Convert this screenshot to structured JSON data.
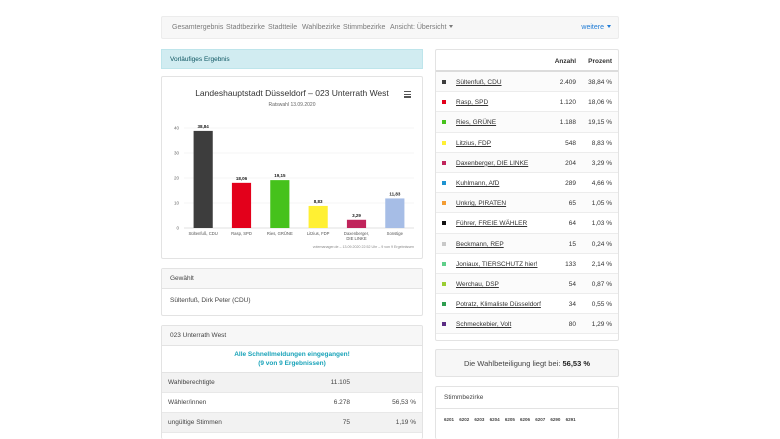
{
  "nav": {
    "items": [
      "Gesamtergebnis",
      "Stadtbezirke",
      "Stadtteile",
      "Wahlbezirke",
      "Stimmbezirke",
      "Ansicht: Übersicht"
    ],
    "more": "weitere"
  },
  "banner": "Vorläufiges Ergebnis",
  "chart_data": {
    "type": "bar",
    "title": "Landeshauptstadt Düsseldorf – 023 Unterrath West",
    "subtitle": "Ratswahl 13.09.2020",
    "categories": [
      "Sültenfuß, CDU",
      "Rasp, SPD",
      "Ries, GRÜNE",
      "Litzius, FDP",
      "Daxenberger, DIE LINKE",
      "Sonstige"
    ],
    "values": [
      38.84,
      18.06,
      19.15,
      8.83,
      3.29,
      11.83
    ],
    "value_labels": [
      "38,84",
      "18,06",
      "19,15",
      "8,83",
      "3,29",
      "11,83"
    ],
    "colors": [
      "#3d3d3d",
      "#e3001b",
      "#46c21c",
      "#fff033",
      "#c0245b",
      "#a6bde6"
    ],
    "ylim": [
      0,
      40
    ],
    "yticks": [
      "0",
      "10",
      "20",
      "30",
      "40"
    ],
    "footnote": "votemanager.de – 13.09.2020 22:52 Uhr – 9 von 9 Ergebnissen",
    "xlabel": "",
    "ylabel": ""
  },
  "gewaehlt": {
    "header": "Gewählt",
    "name": "Sültenfuß, Dirk Peter (CDU)"
  },
  "wahlbezirk": {
    "header": "023 Unterrath West",
    "notice_line1": "Alle Schnellmeldungen eingegangen!",
    "notice_line2": "(9 von 9 Ergebnissen)",
    "rows": [
      {
        "label": "Wahlberechtigte",
        "value": "11.105",
        "pct": ""
      },
      {
        "label": "Wähler/innen",
        "value": "6.278",
        "pct": "56,53 %"
      },
      {
        "label": "ungültige Stimmen",
        "value": "75",
        "pct": "1,19 %"
      }
    ]
  },
  "results": {
    "col_anzahl": "Anzahl",
    "col_prozent": "Prozent",
    "rows": [
      {
        "party": "Sültenfuß, CDU",
        "votes": "2.409",
        "pct": "38,84 %",
        "color": "#3d3d3d"
      },
      {
        "party": "Rasp, SPD",
        "votes": "1.120",
        "pct": "18,06 %",
        "color": "#e3001b"
      },
      {
        "party": "Ries, GRÜNE",
        "votes": "1.188",
        "pct": "19,15 %",
        "color": "#46c21c"
      },
      {
        "party": "Litzius, FDP",
        "votes": "548",
        "pct": "8,83 %",
        "color": "#fff033"
      },
      {
        "party": "Daxenberger, DIE LINKE",
        "votes": "204",
        "pct": "3,29 %",
        "color": "#c0245b"
      },
      {
        "party": "Kuhlmann, AfD",
        "votes": "289",
        "pct": "4,66 %",
        "color": "#1d93d1"
      },
      {
        "party": "Unkrig, PIRATEN",
        "votes": "65",
        "pct": "1,05 %",
        "color": "#f39c33"
      },
      {
        "party": "Führer, FREIE WÄHLER",
        "votes": "64",
        "pct": "1,03 %",
        "color": "#111111"
      },
      {
        "party": "Beckmann, REP",
        "votes": "15",
        "pct": "0,24 %",
        "color": "#c8c8c8"
      },
      {
        "party": "Joniaux, TIERSCHUTZ hier!",
        "votes": "133",
        "pct": "2,14 %",
        "color": "#5fcf8a"
      },
      {
        "party": "Werchau, DSP",
        "votes": "54",
        "pct": "0,87 %",
        "color": "#9acd32"
      },
      {
        "party": "Potratz, Klimaliste Düsseldorf",
        "votes": "34",
        "pct": "0,55 %",
        "color": "#2e9e4f"
      },
      {
        "party": "Schmeckebier, Volt",
        "votes": "80",
        "pct": "1,29 %",
        "color": "#5b2c83"
      }
    ]
  },
  "turnout": {
    "text": "Die Wahlbeteiligung liegt bei:",
    "value": "56,53 %"
  },
  "stimmbezirke": {
    "header": "Stimmbezirke",
    "items": [
      "6201",
      "6202",
      "6203",
      "6204",
      "6205",
      "6206",
      "6207",
      "6290",
      "6291"
    ]
  }
}
